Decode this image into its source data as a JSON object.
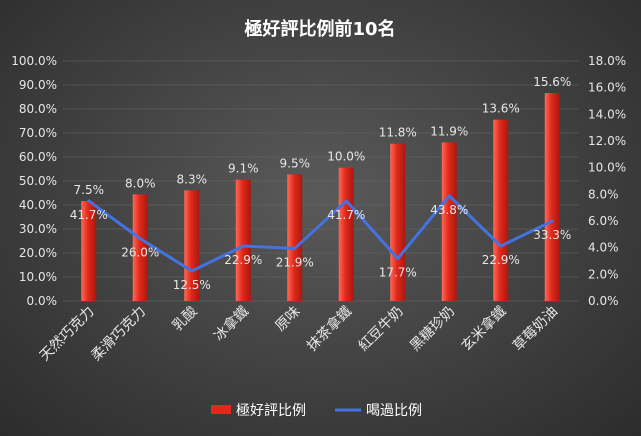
{
  "chart_data": {
    "type": "bar",
    "title": "極好評比例前10名",
    "categories": [
      "天然巧克力",
      "柔滑巧克力",
      "乳酸",
      "冰拿鐵",
      "原味",
      "抹茶拿鐵",
      "紅豆牛奶",
      "黑糖珍奶",
      "玄米拿鐵",
      "草莓奶油"
    ],
    "series": [
      {
        "name": "極好評比例",
        "type": "bar",
        "axis": "right",
        "color": "#e0291b",
        "values": [
          7.5,
          8.0,
          8.3,
          9.1,
          9.5,
          10.0,
          11.8,
          11.9,
          13.6,
          15.6
        ],
        "labels": [
          "7.5%",
          "8.0%",
          "8.3%",
          "9.1%",
          "9.5%",
          "10.0%",
          "11.8%",
          "11.9%",
          "13.6%",
          "15.6%"
        ]
      },
      {
        "name": "喝過比例",
        "type": "line",
        "axis": "left",
        "color": "#4472e0",
        "values": [
          41.7,
          26.0,
          12.5,
          22.9,
          21.9,
          41.7,
          17.7,
          43.8,
          22.9,
          33.3
        ],
        "labels": [
          "41.7%",
          "26.0%",
          "12.5%",
          "22.9%",
          "21.9%",
          "41.7%",
          "17.7%",
          "43.8%",
          "22.9%",
          "33.3%"
        ]
      }
    ],
    "y_left": {
      "range": [
        0,
        100
      ],
      "ticks": [
        "0.0%",
        "10.0%",
        "20.0%",
        "30.0%",
        "40.0%",
        "50.0%",
        "60.0%",
        "70.0%",
        "80.0%",
        "90.0%",
        "100.0%"
      ]
    },
    "y_right": {
      "range": [
        0,
        18
      ],
      "ticks": [
        "0.0%",
        "2.0%",
        "4.0%",
        "6.0%",
        "8.0%",
        "10.0%",
        "12.0%",
        "14.0%",
        "16.0%",
        "18.0%"
      ]
    },
    "grid": true,
    "legend": "bottom"
  }
}
